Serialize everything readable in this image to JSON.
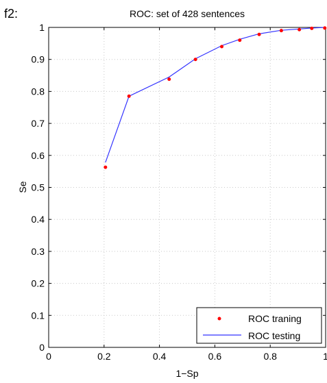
{
  "panel_label": "f2:",
  "colors": {
    "training_marker": "#ff0000",
    "testing_line": "#3333ff",
    "axis": "#000000",
    "grid": "#c8c8c8",
    "background": "#ffffff"
  },
  "chart_data": {
    "type": "line",
    "title": "ROC: set of 428 sentences",
    "xlabel": "1−Sp",
    "ylabel": "Se",
    "xlim": [
      0,
      1
    ],
    "ylim": [
      0,
      1
    ],
    "x_ticks": [
      "0",
      "0.2",
      "0.4",
      "0.6",
      "0.8",
      "1"
    ],
    "x_tick_values": [
      0,
      0.2,
      0.4,
      0.6,
      0.8,
      1
    ],
    "y_ticks": [
      "0",
      "0.1",
      "0.2",
      "0.3",
      "0.4",
      "0.5",
      "0.6",
      "0.7",
      "0.8",
      "0.9",
      "1"
    ],
    "y_tick_values": [
      0,
      0.1,
      0.2,
      0.3,
      0.4,
      0.5,
      0.6,
      0.7,
      0.8,
      0.9,
      1
    ],
    "grid": true,
    "grid_style": "dotted",
    "legend_position": "bottom-right",
    "series": [
      {
        "name": "ROC traning",
        "style": "points",
        "color": "#ff0000",
        "x": [
          0.205,
          0.29,
          0.435,
          0.53,
          0.625,
          0.69,
          0.76,
          0.84,
          0.905,
          0.95,
          0.997
        ],
        "y": [
          0.563,
          0.785,
          0.838,
          0.9,
          0.94,
          0.96,
          0.978,
          0.99,
          0.993,
          0.997,
          0.998
        ]
      },
      {
        "name": "ROC testing",
        "style": "line",
        "color": "#3333ff",
        "x": [
          0.205,
          0.29,
          0.435,
          0.53,
          0.625,
          0.69,
          0.76,
          0.84,
          0.905,
          0.95,
          0.997
        ],
        "y": [
          0.578,
          0.785,
          0.845,
          0.902,
          0.943,
          0.963,
          0.98,
          0.991,
          0.995,
          0.998,
          1.0
        ]
      }
    ]
  }
}
